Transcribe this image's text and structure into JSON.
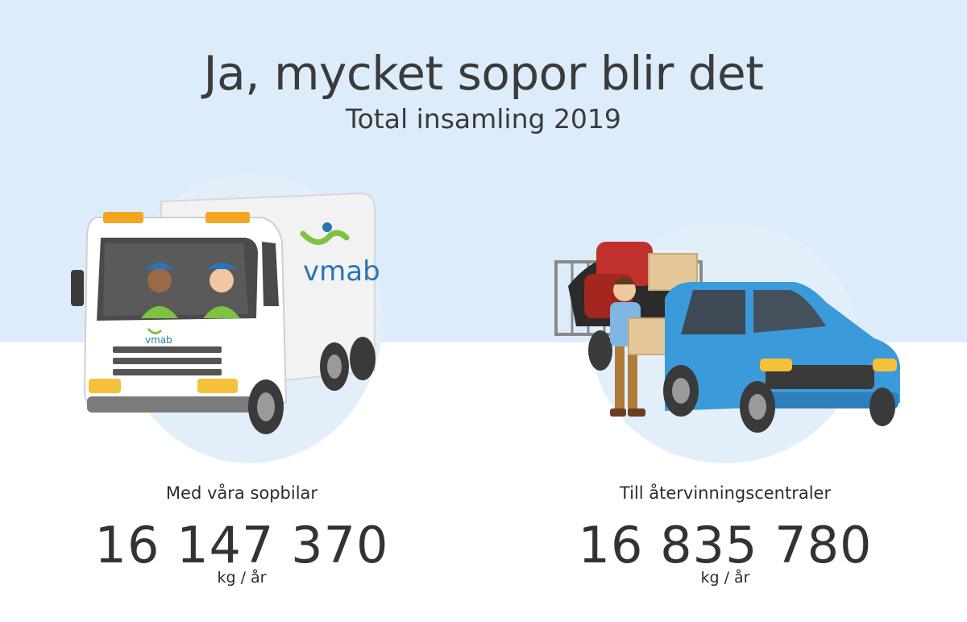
{
  "header": {
    "title": "Ja, mycket sopor blir det",
    "subtitle": "Total insamling 2019"
  },
  "brand": {
    "logo_text": "vmab",
    "colors": {
      "blue": "#2a74b8",
      "green": "#7fc241",
      "sky": "#dcecfb"
    }
  },
  "stats": [
    {
      "label": "Med våra sopbilar",
      "value": "16 147 370",
      "unit": "kg / år",
      "icon": "garbage-truck-icon"
    },
    {
      "label": "Till återvinningscentraler",
      "value": "16 835 780",
      "unit": "kg / år",
      "icon": "car-with-trailer-icon"
    }
  ]
}
